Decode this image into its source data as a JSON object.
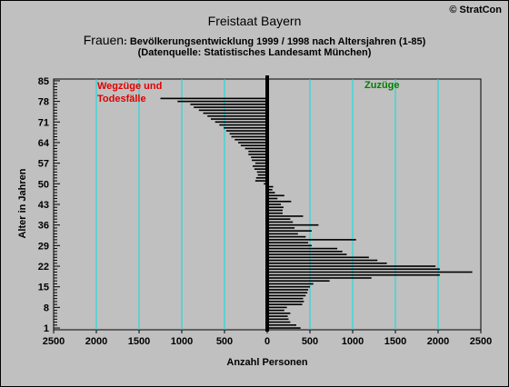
{
  "header": {
    "title": "Freistaat Bayern",
    "copyright": "© StratCon",
    "subtitle_lead": "Frauen",
    "subtitle_rest": ": Bevölkerungsentwicklung 1999 / 1998  nach Altersjahren (1-85)",
    "source": "(Datenquelle: Statistisches Landesamt München)"
  },
  "annotations": {
    "left_line1": "Wegzüge und",
    "left_line2": "Todesfälle",
    "right": "Zuzüge"
  },
  "colors": {
    "background": "#c0c0c0",
    "bars": "#000000",
    "gridlines": "#00e0e0",
    "left_annotation": "#e00000",
    "right_annotation": "#008000"
  },
  "chart_data": {
    "type": "bar",
    "orientation": "horizontal",
    "xlabel": "Anzahl Personen",
    "ylabel": "Alter in Jahren",
    "xlim": [
      -2500,
      2500
    ],
    "ylim": [
      1,
      85
    ],
    "x_ticks": [
      -2500,
      -2000,
      -1500,
      -1000,
      -500,
      0,
      500,
      1000,
      1500,
      2000,
      2500
    ],
    "x_tick_labels": [
      "2500",
      "2000",
      "1500",
      "1000",
      "500",
      "0",
      "500",
      "1000",
      "1500",
      "2000",
      "2500"
    ],
    "y_ticks": [
      1,
      8,
      15,
      22,
      29,
      36,
      43,
      50,
      57,
      64,
      71,
      78,
      85
    ],
    "grid": "vertical",
    "ages": [
      1,
      2,
      3,
      4,
      5,
      6,
      7,
      8,
      9,
      10,
      11,
      12,
      13,
      14,
      15,
      16,
      17,
      18,
      19,
      20,
      21,
      22,
      23,
      24,
      25,
      26,
      27,
      28,
      29,
      30,
      31,
      32,
      33,
      34,
      35,
      36,
      37,
      38,
      39,
      40,
      41,
      42,
      43,
      44,
      45,
      46,
      47,
      48,
      49,
      50,
      51,
      52,
      53,
      54,
      55,
      56,
      57,
      58,
      59,
      60,
      61,
      62,
      63,
      64,
      65,
      66,
      67,
      68,
      69,
      70,
      71,
      72,
      73,
      74,
      75,
      76,
      77,
      78,
      79,
      80,
      81,
      82,
      83,
      84,
      85
    ],
    "values": [
      390,
      340,
      270,
      250,
      240,
      270,
      200,
      230,
      410,
      430,
      420,
      450,
      470,
      480,
      500,
      540,
      730,
      1220,
      2020,
      2400,
      2020,
      1970,
      1400,
      1290,
      1190,
      930,
      880,
      820,
      520,
      480,
      1040,
      450,
      360,
      520,
      320,
      600,
      300,
      270,
      420,
      180,
      180,
      190,
      160,
      280,
      120,
      200,
      90,
      60,
      70,
      -40,
      -140,
      -130,
      -110,
      -120,
      -150,
      -170,
      -140,
      -180,
      -190,
      -220,
      -220,
      -260,
      -310,
      -340,
      -380,
      -420,
      -440,
      -480,
      -510,
      -560,
      -610,
      -660,
      -700,
      -750,
      -800,
      -860,
      -900,
      -1050,
      -1250,
      -20,
      -20,
      -20,
      -20,
      -20,
      -20
    ]
  }
}
